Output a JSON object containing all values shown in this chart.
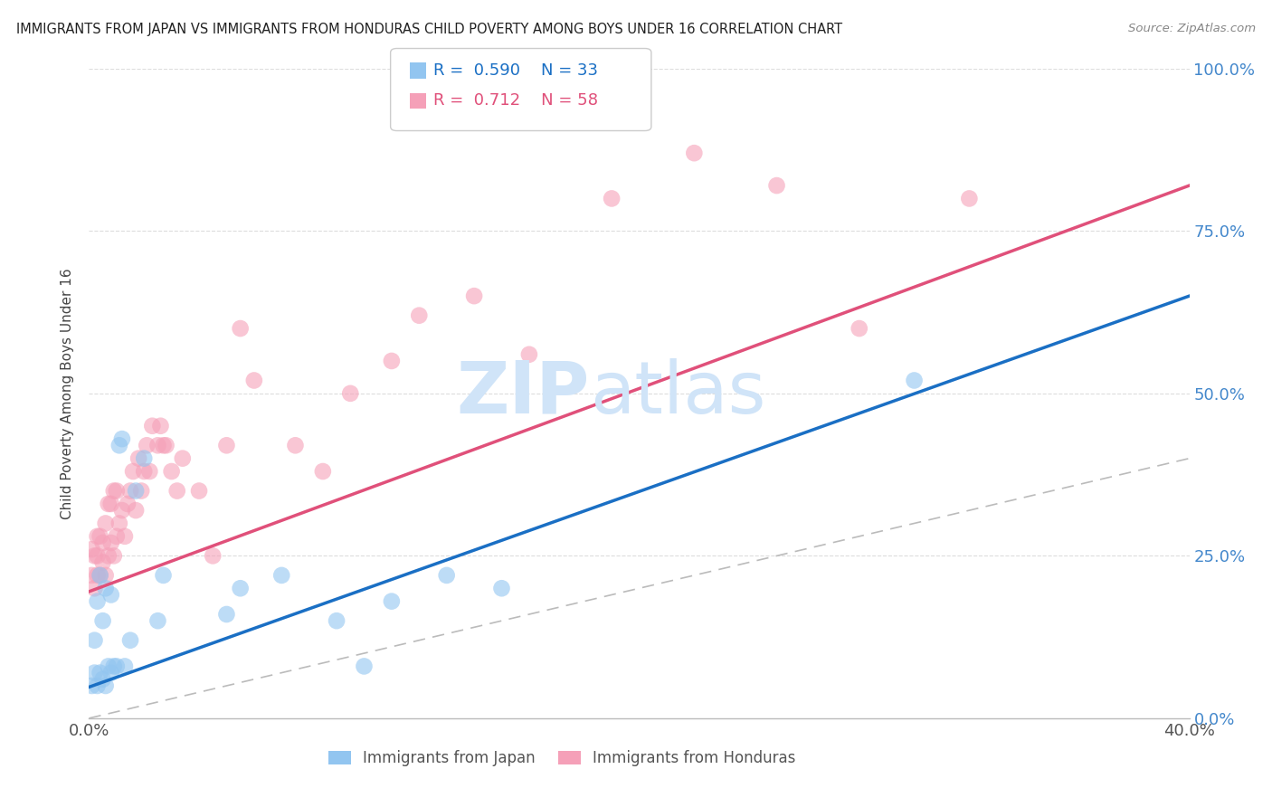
{
  "title": "IMMIGRANTS FROM JAPAN VS IMMIGRANTS FROM HONDURAS CHILD POVERTY AMONG BOYS UNDER 16 CORRELATION CHART",
  "source": "Source: ZipAtlas.com",
  "ylabel": "Child Poverty Among Boys Under 16",
  "xlim": [
    0,
    0.4
  ],
  "ylim": [
    0,
    1.0
  ],
  "japan_R": 0.59,
  "japan_N": 33,
  "honduras_R": 0.712,
  "honduras_N": 58,
  "japan_color": "#92c5f0",
  "honduras_color": "#f5a0b8",
  "japan_line_color": "#1a6fc4",
  "honduras_line_color": "#e0507a",
  "ref_line_color": "#bbbbbb",
  "background_color": "#ffffff",
  "watermark_zip": "ZIP",
  "watermark_atlas": "atlas",
  "watermark_color": "#d0e4f8",
  "japan_x": [
    0.001,
    0.002,
    0.002,
    0.003,
    0.003,
    0.004,
    0.004,
    0.005,
    0.005,
    0.006,
    0.006,
    0.007,
    0.008,
    0.008,
    0.009,
    0.01,
    0.011,
    0.012,
    0.013,
    0.015,
    0.017,
    0.02,
    0.025,
    0.027,
    0.05,
    0.055,
    0.07,
    0.09,
    0.1,
    0.11,
    0.13,
    0.15,
    0.3
  ],
  "japan_y": [
    0.05,
    0.07,
    0.12,
    0.05,
    0.18,
    0.07,
    0.22,
    0.06,
    0.15,
    0.05,
    0.2,
    0.08,
    0.07,
    0.19,
    0.08,
    0.08,
    0.42,
    0.43,
    0.08,
    0.12,
    0.35,
    0.4,
    0.15,
    0.22,
    0.16,
    0.2,
    0.22,
    0.15,
    0.08,
    0.18,
    0.22,
    0.2,
    0.52
  ],
  "honduras_x": [
    0.001,
    0.001,
    0.002,
    0.002,
    0.003,
    0.003,
    0.003,
    0.004,
    0.004,
    0.005,
    0.005,
    0.006,
    0.006,
    0.007,
    0.007,
    0.008,
    0.008,
    0.009,
    0.009,
    0.01,
    0.01,
    0.011,
    0.012,
    0.013,
    0.014,
    0.015,
    0.016,
    0.017,
    0.018,
    0.019,
    0.02,
    0.021,
    0.022,
    0.023,
    0.025,
    0.026,
    0.027,
    0.028,
    0.03,
    0.032,
    0.034,
    0.04,
    0.045,
    0.05,
    0.055,
    0.06,
    0.075,
    0.085,
    0.095,
    0.11,
    0.12,
    0.14,
    0.16,
    0.19,
    0.22,
    0.25,
    0.28,
    0.32
  ],
  "honduras_y": [
    0.22,
    0.26,
    0.2,
    0.25,
    0.22,
    0.25,
    0.28,
    0.22,
    0.28,
    0.24,
    0.27,
    0.22,
    0.3,
    0.25,
    0.33,
    0.27,
    0.33,
    0.25,
    0.35,
    0.28,
    0.35,
    0.3,
    0.32,
    0.28,
    0.33,
    0.35,
    0.38,
    0.32,
    0.4,
    0.35,
    0.38,
    0.42,
    0.38,
    0.45,
    0.42,
    0.45,
    0.42,
    0.42,
    0.38,
    0.35,
    0.4,
    0.35,
    0.25,
    0.42,
    0.6,
    0.52,
    0.42,
    0.38,
    0.5,
    0.55,
    0.62,
    0.65,
    0.56,
    0.8,
    0.87,
    0.82,
    0.6,
    0.8
  ],
  "japan_line_x0": 0.0,
  "japan_line_y0": 0.048,
  "japan_line_x1": 0.4,
  "japan_line_y1": 0.65,
  "honduras_line_x0": 0.0,
  "honduras_line_y0": 0.195,
  "honduras_line_x1": 0.4,
  "honduras_line_y1": 0.82
}
